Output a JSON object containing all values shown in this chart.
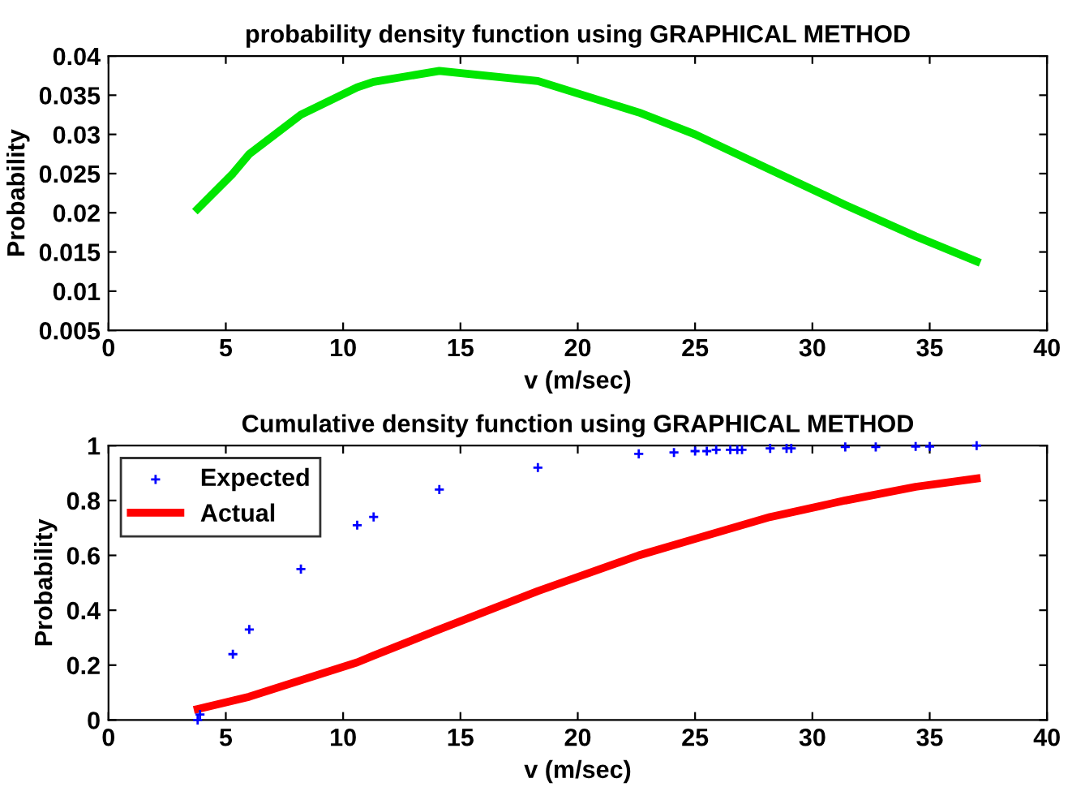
{
  "chart_data": [
    {
      "type": "line",
      "title": "probability density function using GRAPHICAL METHOD",
      "xlabel": "v (m/sec)",
      "ylabel": "Probability",
      "xlim": [
        0,
        40
      ],
      "xticks": [
        0,
        5,
        10,
        15,
        20,
        25,
        30,
        35,
        40
      ],
      "ylim": [
        0.005,
        0.04
      ],
      "yticks": [
        0.005,
        0.01,
        0.015,
        0.02,
        0.025,
        0.03,
        0.035,
        0.04
      ],
      "grid": false,
      "legend": false,
      "series": [
        {
          "color": "#00e600",
          "x": [
            3.8,
            5.3,
            6.0,
            8.2,
            10.6,
            11.3,
            14.1,
            18.3,
            22.6,
            25.0,
            28.2,
            31.4,
            34.4,
            37.0
          ],
          "values": [
            0.0205,
            0.025,
            0.0275,
            0.0325,
            0.036,
            0.0367,
            0.0381,
            0.0368,
            0.0328,
            0.03,
            0.0255,
            0.021,
            0.017,
            0.0138
          ]
        }
      ]
    },
    {
      "type": "line",
      "title": "Cumulative density function using GRAPHICAL METHOD",
      "xlabel": "v (m/sec)",
      "ylabel": "Probability",
      "xlim": [
        0,
        40
      ],
      "xticks": [
        0,
        5,
        10,
        15,
        20,
        25,
        30,
        35,
        40
      ],
      "ylim": [
        0,
        1
      ],
      "yticks": [
        0,
        0.2,
        0.4,
        0.6,
        0.8,
        1
      ],
      "grid": false,
      "legend": "top left",
      "series": [
        {
          "name": "Expected",
          "type": "scatter",
          "marker": "cross",
          "color": "#0000ff",
          "x": [
            3.8,
            3.9,
            5.3,
            6.0,
            8.2,
            10.6,
            11.3,
            14.1,
            18.3,
            22.6,
            24.1,
            25.0,
            25.5,
            25.9,
            26.5,
            26.8,
            27.0,
            28.2,
            28.9,
            29.1,
            31.4,
            32.7,
            34.4,
            35.0,
            37.0
          ],
          "values": [
            0.0,
            0.02,
            0.24,
            0.33,
            0.55,
            0.71,
            0.74,
            0.84,
            0.92,
            0.97,
            0.975,
            0.98,
            0.98,
            0.985,
            0.985,
            0.985,
            0.985,
            0.99,
            0.99,
            0.99,
            0.995,
            0.995,
            0.997,
            0.997,
            1.0
          ]
        },
        {
          "name": "Actual",
          "type": "line",
          "color": "#ff0000",
          "x": [
            3.8,
            6.0,
            8.2,
            10.6,
            11.3,
            14.1,
            18.3,
            22.6,
            25.0,
            28.2,
            31.4,
            34.4,
            37.0
          ],
          "values": [
            0.04,
            0.085,
            0.145,
            0.21,
            0.235,
            0.33,
            0.47,
            0.6,
            0.66,
            0.74,
            0.8,
            0.85,
            0.88
          ]
        }
      ]
    }
  ]
}
